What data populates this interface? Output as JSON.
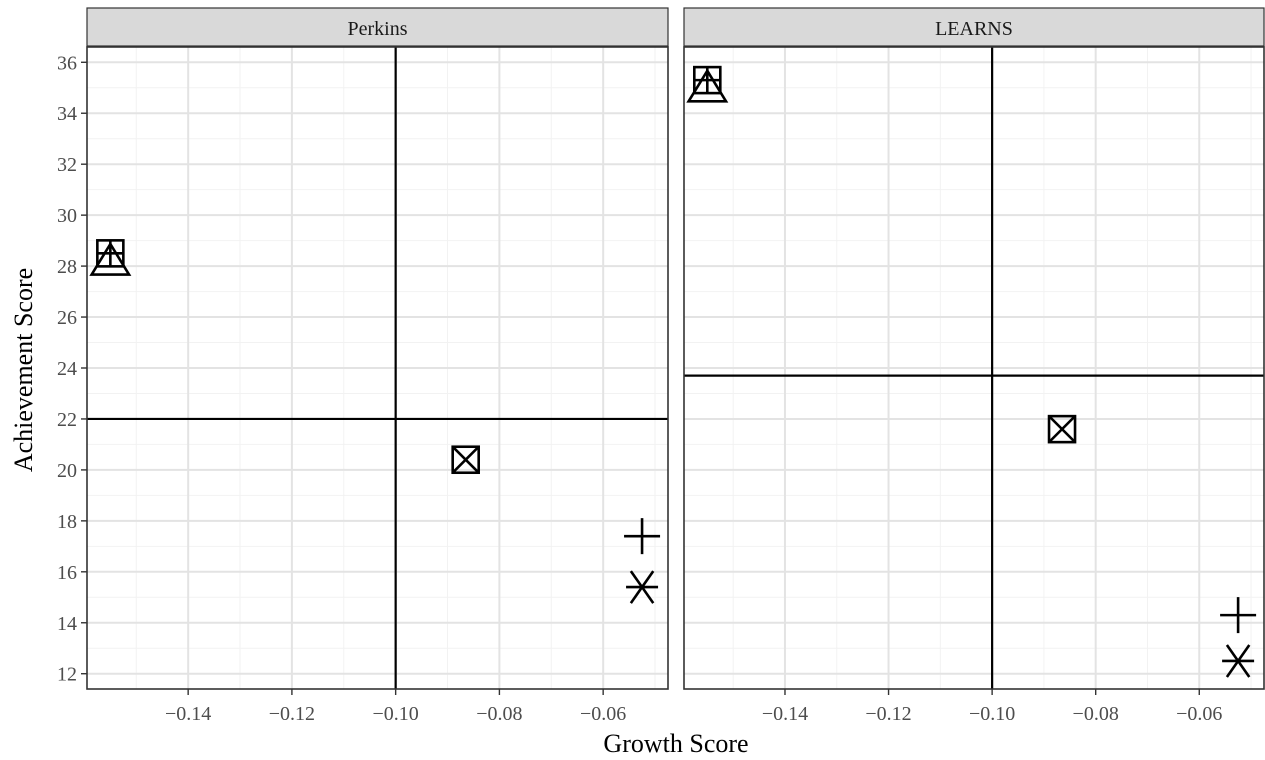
{
  "chart_data": {
    "type": "scatter",
    "xlabel": "Growth Score",
    "ylabel": "Achievement Score",
    "xlim": [
      -0.1595,
      -0.0475
    ],
    "ylim": [
      11.4,
      36.6
    ],
    "x_ticks": [
      -0.14,
      -0.12,
      -0.1,
      -0.08,
      -0.06
    ],
    "x_tick_labels": [
      "−0.14",
      "−0.12",
      "−0.10",
      "−0.08",
      "−0.06"
    ],
    "y_ticks": [
      12,
      14,
      16,
      18,
      20,
      22,
      24,
      26,
      28,
      30,
      32,
      34,
      36
    ],
    "y_tick_labels": [
      "12",
      "14",
      "16",
      "18",
      "20",
      "22",
      "24",
      "26",
      "28",
      "30",
      "32",
      "34",
      "36"
    ],
    "grid": true,
    "facets": [
      {
        "label": "Perkins",
        "vline": -0.1,
        "hline": 22.0,
        "points": [
          {
            "x": -0.155,
            "y": 28.5,
            "shape": "square-plus"
          },
          {
            "x": -0.155,
            "y": 28.2,
            "shape": "triangle"
          },
          {
            "x": -0.0865,
            "y": 20.4,
            "shape": "square-x"
          },
          {
            "x": -0.0525,
            "y": 17.4,
            "shape": "plus"
          },
          {
            "x": -0.0525,
            "y": 15.4,
            "shape": "asterisk"
          }
        ]
      },
      {
        "label": "LEARNS",
        "vline": -0.1,
        "hline": 23.7,
        "points": [
          {
            "x": -0.155,
            "y": 35.3,
            "shape": "square-plus"
          },
          {
            "x": -0.155,
            "y": 35.0,
            "shape": "triangle"
          },
          {
            "x": -0.0865,
            "y": 21.6,
            "shape": "square-x"
          },
          {
            "x": -0.0525,
            "y": 14.3,
            "shape": "plus"
          },
          {
            "x": -0.0525,
            "y": 12.5,
            "shape": "asterisk"
          }
        ]
      }
    ]
  }
}
